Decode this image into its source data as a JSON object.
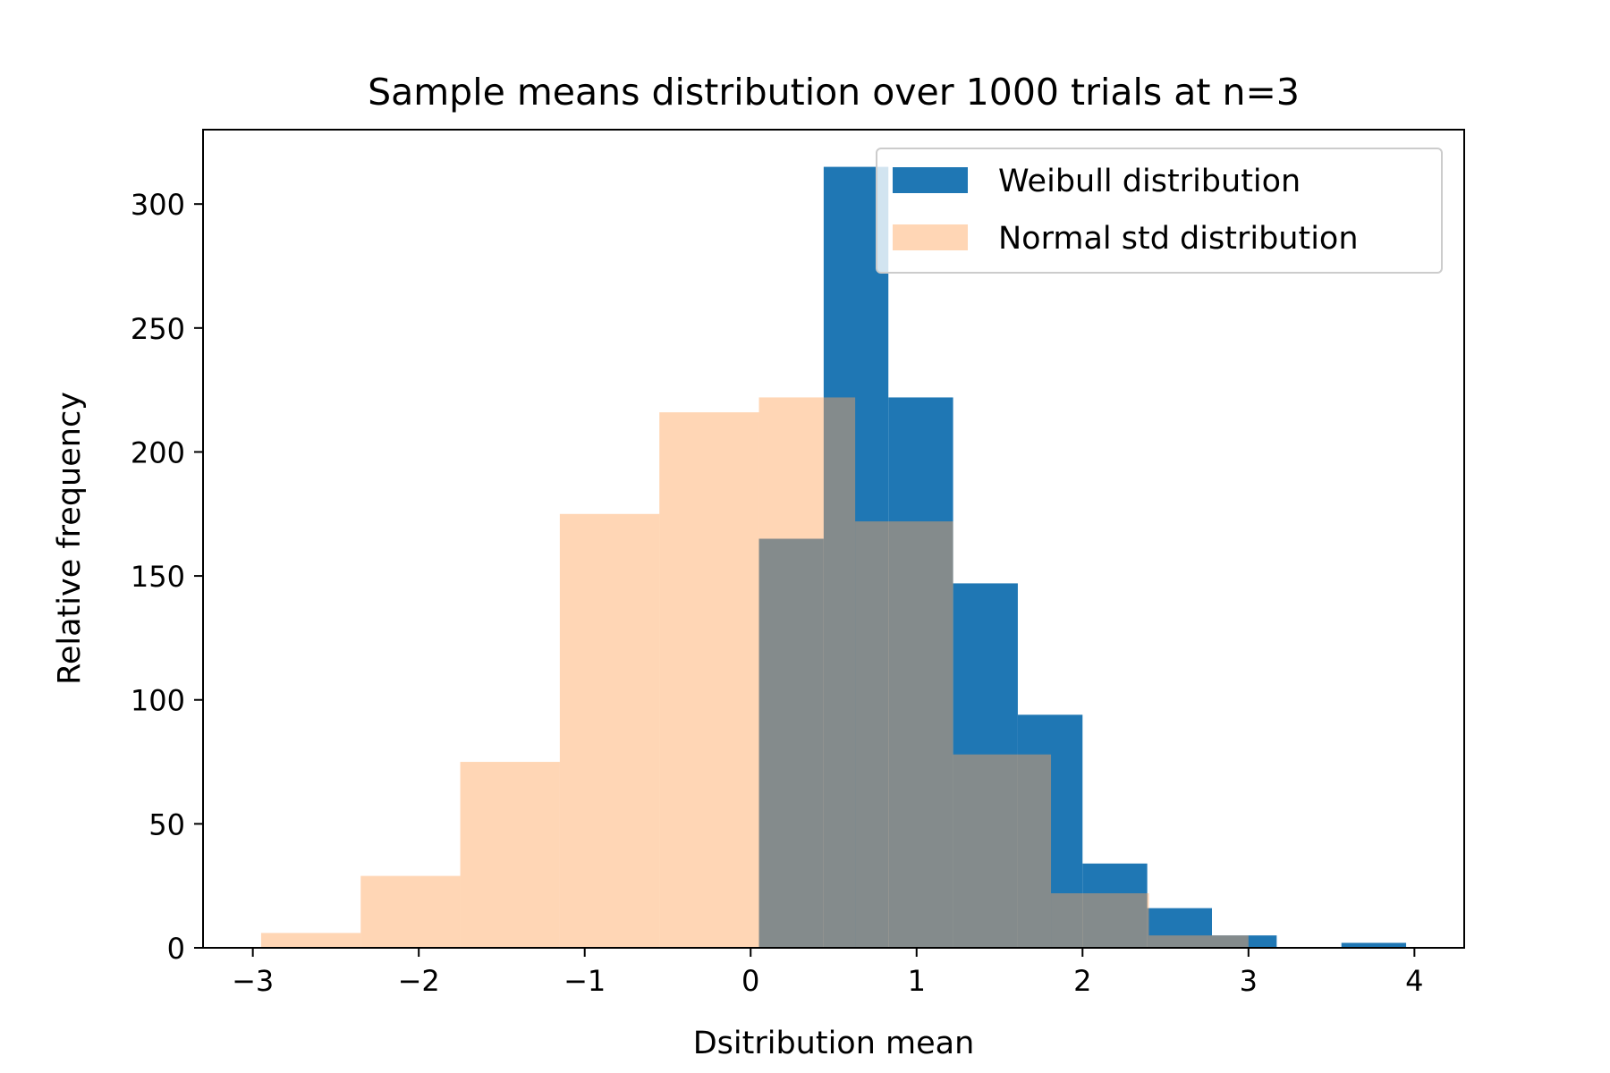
{
  "chart_data": {
    "type": "bar",
    "title": "Sample means distribution over 1000 trials at  n=3",
    "xlabel": "Dsitribution mean",
    "ylabel": "Relative frequency",
    "xlim": [
      -3.3,
      4.3
    ],
    "ylim": [
      0,
      330
    ],
    "xticks": [
      -3,
      -2,
      -1,
      0,
      1,
      2,
      3,
      4
    ],
    "xtick_labels": [
      "−3",
      "−2",
      "−1",
      "0",
      "1",
      "2",
      "3",
      "4"
    ],
    "yticks": [
      0,
      50,
      100,
      150,
      200,
      250,
      300
    ],
    "ytick_labels": [
      "0",
      "50",
      "100",
      "150",
      "200",
      "250",
      "300"
    ],
    "grid": false,
    "legend_position": "top-right",
    "series": [
      {
        "name": "Weibull distribution",
        "color": "#1f77b4",
        "opacity": 1.0,
        "bins": [
          {
            "x0": 0.05,
            "x1": 0.44,
            "value": 165
          },
          {
            "x0": 0.44,
            "x1": 0.83,
            "value": 315
          },
          {
            "x0": 0.83,
            "x1": 1.22,
            "value": 222
          },
          {
            "x0": 1.22,
            "x1": 1.61,
            "value": 147
          },
          {
            "x0": 1.61,
            "x1": 2.0,
            "value": 94
          },
          {
            "x0": 2.0,
            "x1": 2.39,
            "value": 34
          },
          {
            "x0": 2.39,
            "x1": 2.78,
            "value": 16
          },
          {
            "x0": 2.78,
            "x1": 3.17,
            "value": 5
          },
          {
            "x0": 3.17,
            "x1": 3.56,
            "value": 0
          },
          {
            "x0": 3.56,
            "x1": 3.95,
            "value": 2
          }
        ]
      },
      {
        "name": "Normal std distribution",
        "color": "#ffa55a",
        "opacity": 0.45,
        "bins": [
          {
            "x0": -2.95,
            "x1": -2.35,
            "value": 6
          },
          {
            "x0": -2.35,
            "x1": -1.75,
            "value": 29
          },
          {
            "x0": -1.75,
            "x1": -1.15,
            "value": 75
          },
          {
            "x0": -1.15,
            "x1": -0.55,
            "value": 175
          },
          {
            "x0": -0.55,
            "x1": 0.05,
            "value": 216
          },
          {
            "x0": 0.05,
            "x1": 0.63,
            "value": 222
          },
          {
            "x0": 0.63,
            "x1": 1.22,
            "value": 172
          },
          {
            "x0": 1.22,
            "x1": 1.81,
            "value": 78
          },
          {
            "x0": 1.81,
            "x1": 2.4,
            "value": 22
          },
          {
            "x0": 2.4,
            "x1": 3.0,
            "value": 5
          }
        ]
      }
    ]
  }
}
